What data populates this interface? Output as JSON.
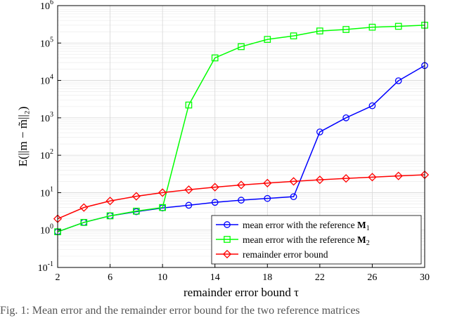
{
  "chart_data": {
    "type": "line",
    "xlabel": "remainder error bound τ",
    "ylabel": "E(||m − m̃||₂)",
    "xlim": [
      2,
      30
    ],
    "ylim": [
      0.1,
      1000000
    ],
    "yscale": "log",
    "grid": true,
    "legend_position": "bottom-right",
    "x_ticks": [
      "2",
      "6",
      "10",
      "14",
      "18",
      "22",
      "26",
      "30"
    ],
    "y_ticks": [
      {
        "base": "10",
        "exp": "-1"
      },
      {
        "base": "10",
        "exp": "0"
      },
      {
        "base": "10",
        "exp": "1"
      },
      {
        "base": "10",
        "exp": "2"
      },
      {
        "base": "10",
        "exp": "3"
      },
      {
        "base": "10",
        "exp": "4"
      },
      {
        "base": "10",
        "exp": "5"
      },
      {
        "base": "10",
        "exp": "6"
      }
    ],
    "x": [
      2,
      4,
      6,
      8,
      10,
      12,
      14,
      16,
      18,
      20,
      22,
      24,
      26,
      28,
      30
    ],
    "series": [
      {
        "legend_text": "mean error with the reference ",
        "legend_math": "M",
        "legend_sub": "1",
        "color": "#0000ff",
        "marker": "circle",
        "values": [
          0.9,
          1.6,
          2.4,
          3.1,
          3.9,
          4.6,
          5.5,
          6.3,
          7.0,
          7.8,
          420,
          1000,
          2100,
          9800,
          25000
        ]
      },
      {
        "legend_text": "mean error with the reference ",
        "legend_math": "M",
        "legend_sub": "2",
        "color": "#00ff00",
        "marker": "square",
        "values": [
          0.9,
          1.6,
          2.4,
          3.2,
          4.0,
          2200,
          40000,
          80000,
          125000,
          155000,
          210000,
          230000,
          265000,
          280000,
          300000
        ]
      },
      {
        "legend_text": "remainder error bound",
        "legend_math": "",
        "legend_sub": "",
        "color": "#ff0000",
        "marker": "diamond",
        "values": [
          2,
          4,
          6,
          8,
          10,
          12,
          14,
          16,
          18,
          20,
          22,
          24,
          26,
          28,
          30
        ]
      }
    ]
  },
  "caption": "Fig. 1: Mean error and the remainder error bound for the two reference matrices"
}
